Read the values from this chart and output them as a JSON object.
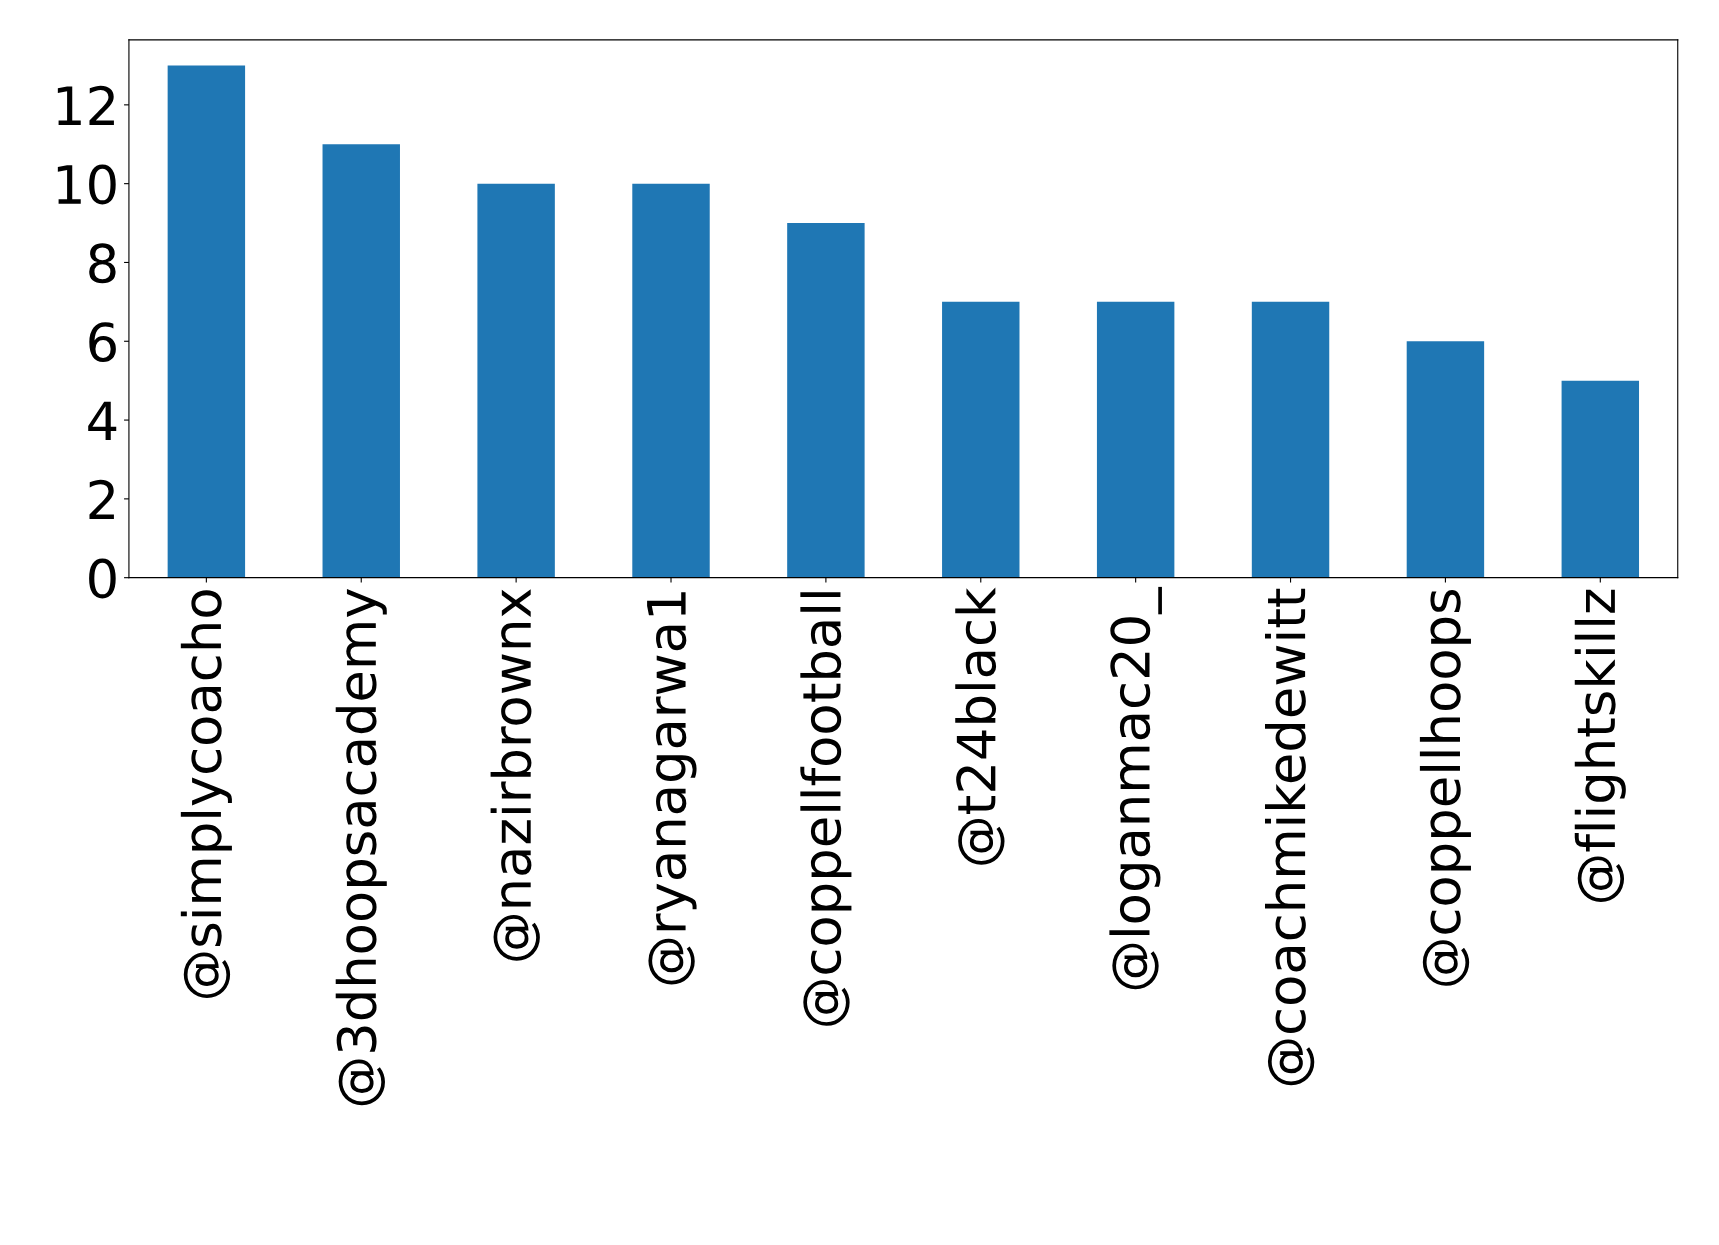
{
  "chart_data": {
    "type": "bar",
    "categories": [
      "@simplycoacho",
      "@3dhoopsacademy",
      "@nazirbrownx",
      "@ryanagarwa1",
      "@coppellfootball",
      "@t24black",
      "@loganmac20_",
      "@coachmikedewitt",
      "@coppellhoops",
      "@flightskillz"
    ],
    "values": [
      13,
      11,
      10,
      10,
      9,
      7,
      7,
      7,
      6,
      5
    ],
    "color": "#1f77b4",
    "ylim": [
      0,
      13.65
    ],
    "yticks": [
      0,
      2,
      4,
      6,
      8,
      10,
      12
    ],
    "grid": false,
    "legend": false
  }
}
